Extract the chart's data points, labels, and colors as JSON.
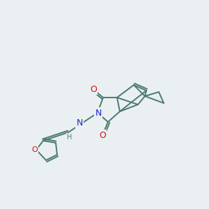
{
  "bg_color": "#eaeff2",
  "bond_color": "#4a7a70",
  "bond_width": 1.4,
  "atom_colors": {
    "N": "#2222cc",
    "O": "#cc1111",
    "C": "#4a7a70",
    "H": "#4a7a70"
  },
  "figsize": [
    3.0,
    3.0
  ],
  "dpi": 100
}
